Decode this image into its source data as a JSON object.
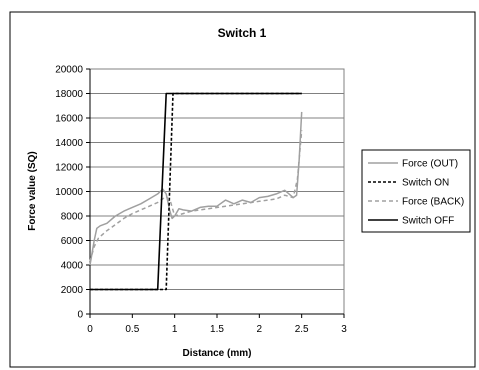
{
  "chart_data": {
    "type": "line",
    "title": "Switch 1",
    "xlabel": "Distance (mm)",
    "ylabel": "Force value (SQ)",
    "xlim": [
      0,
      3
    ],
    "ylim": [
      0,
      20000
    ],
    "x_ticks": [
      "0",
      "0.5",
      "1",
      "1.5",
      "2",
      "2.5",
      "3"
    ],
    "y_ticks": [
      "0",
      "2000",
      "4000",
      "6000",
      "8000",
      "10000",
      "12000",
      "14000",
      "16000",
      "18000",
      "20000"
    ],
    "grid": "horizontal",
    "legend_position": "right",
    "series": [
      {
        "name": "Force (OUT)",
        "color": "#a0a0a0",
        "dash": "solid",
        "points": [
          [
            0,
            4000
          ],
          [
            0.02,
            4800
          ],
          [
            0.05,
            6000
          ],
          [
            0.08,
            7000
          ],
          [
            0.12,
            7200
          ],
          [
            0.2,
            7400
          ],
          [
            0.3,
            8000
          ],
          [
            0.4,
            8400
          ],
          [
            0.5,
            8700
          ],
          [
            0.6,
            9000
          ],
          [
            0.7,
            9400
          ],
          [
            0.8,
            9800
          ],
          [
            0.86,
            10200
          ],
          [
            0.9,
            9800
          ],
          [
            0.94,
            8500
          ],
          [
            0.97,
            7800
          ],
          [
            1.0,
            8000
          ],
          [
            1.05,
            8600
          ],
          [
            1.1,
            8500
          ],
          [
            1.2,
            8400
          ],
          [
            1.3,
            8700
          ],
          [
            1.4,
            8800
          ],
          [
            1.5,
            8800
          ],
          [
            1.6,
            9300
          ],
          [
            1.7,
            9000
          ],
          [
            1.8,
            9300
          ],
          [
            1.9,
            9100
          ],
          [
            2.0,
            9500
          ],
          [
            2.1,
            9600
          ],
          [
            2.2,
            9800
          ],
          [
            2.3,
            10100
          ],
          [
            2.35,
            9800
          ],
          [
            2.4,
            9500
          ],
          [
            2.44,
            9700
          ],
          [
            2.47,
            12500
          ],
          [
            2.5,
            16500
          ]
        ]
      },
      {
        "name": "Switch ON",
        "color": "#000000",
        "dash": "dashed",
        "points": [
          [
            0,
            2000
          ],
          [
            0.9,
            2000
          ],
          [
            0.98,
            18000
          ],
          [
            2.5,
            18000
          ]
        ]
      },
      {
        "name": "Force (BACK)",
        "color": "#a0a0a0",
        "dash": "dashed",
        "points": [
          [
            0,
            4300
          ],
          [
            0.05,
            5500
          ],
          [
            0.1,
            6200
          ],
          [
            0.2,
            6800
          ],
          [
            0.3,
            7300
          ],
          [
            0.4,
            7800
          ],
          [
            0.5,
            8200
          ],
          [
            0.6,
            8500
          ],
          [
            0.7,
            8800
          ],
          [
            0.8,
            9100
          ],
          [
            0.9,
            9600
          ],
          [
            0.95,
            9200
          ],
          [
            1.0,
            8000
          ],
          [
            1.1,
            8200
          ],
          [
            1.2,
            8400
          ],
          [
            1.4,
            8600
          ],
          [
            1.6,
            8800
          ],
          [
            1.8,
            9000
          ],
          [
            2.0,
            9200
          ],
          [
            2.2,
            9400
          ],
          [
            2.3,
            9700
          ],
          [
            2.4,
            9500
          ],
          [
            2.45,
            11000
          ],
          [
            2.5,
            15000
          ]
        ]
      },
      {
        "name": "Switch OFF",
        "color": "#000000",
        "dash": "solid",
        "points": [
          [
            0,
            2000
          ],
          [
            0.8,
            2000
          ],
          [
            0.9,
            18000
          ],
          [
            2.5,
            18000
          ]
        ]
      }
    ]
  }
}
